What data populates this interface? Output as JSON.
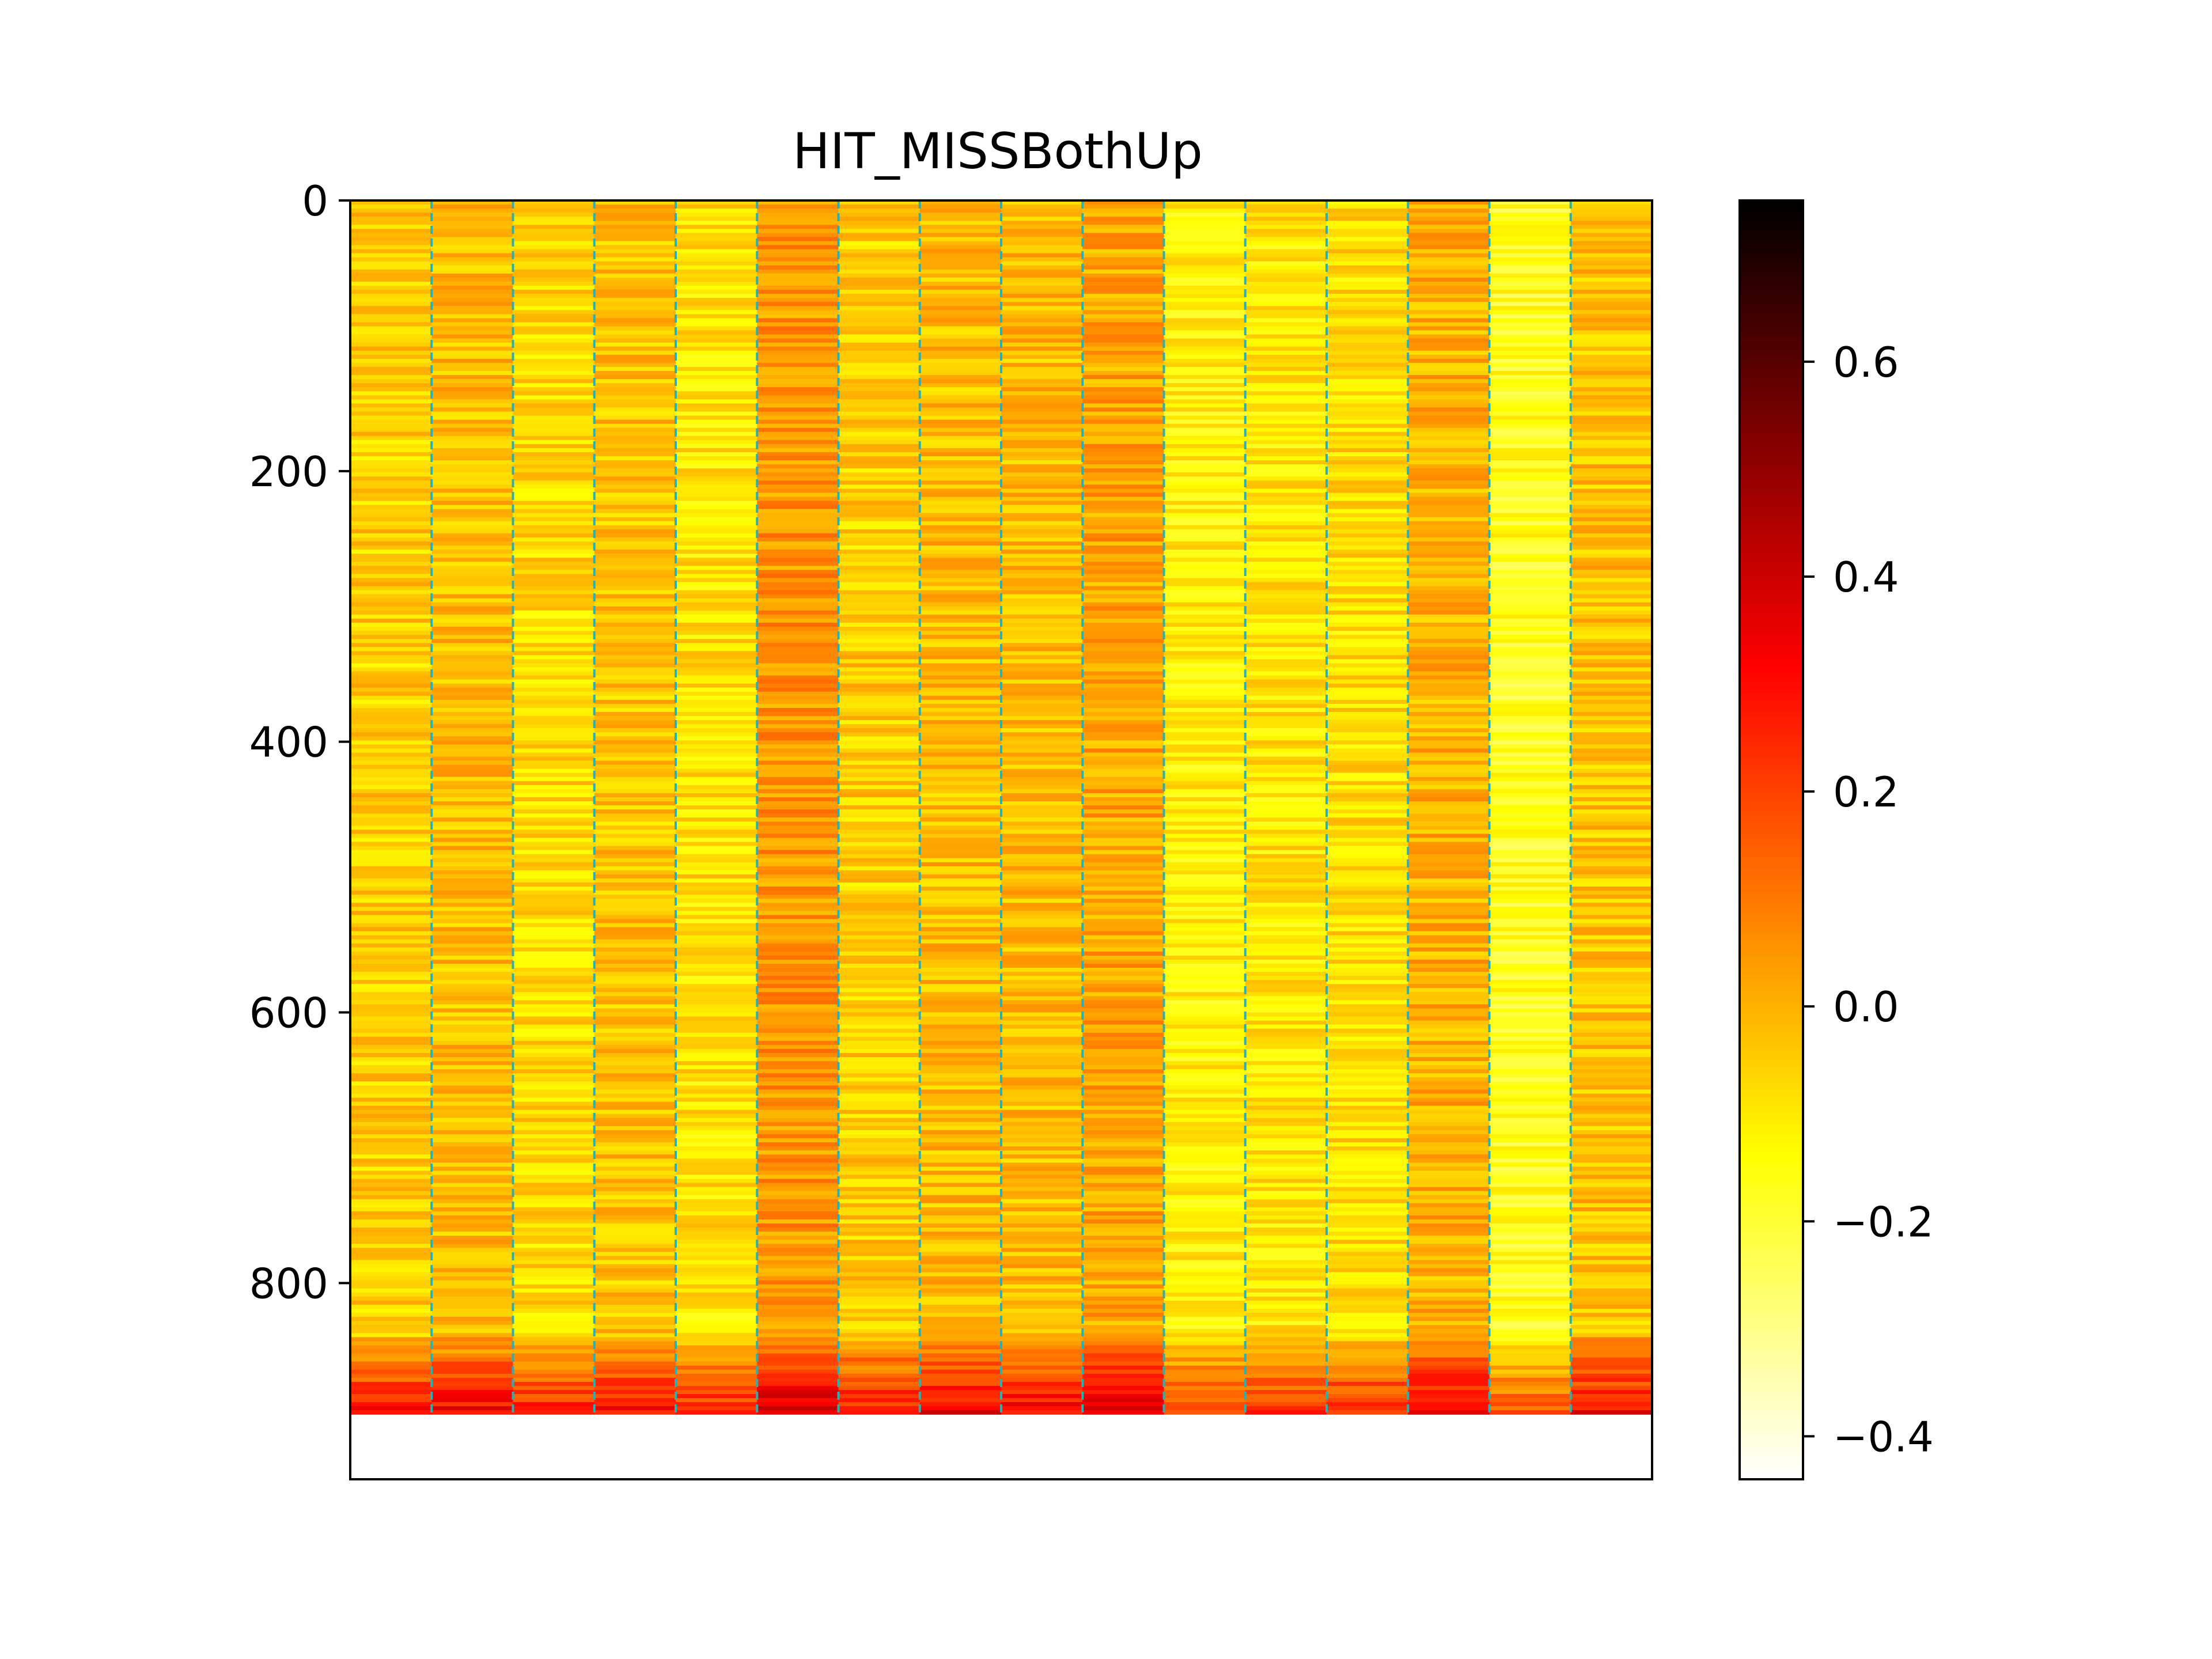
{
  "chart_data": {
    "type": "heatmap",
    "title": "HIT_MISSBothUp",
    "xlabel": "",
    "ylabel": "",
    "colormap": "hot_r",
    "y_axis": {
      "inverted": true,
      "ylim": [
        0,
        945
      ],
      "ticks": [
        0,
        200,
        400,
        600,
        800
      ],
      "tick_labels": [
        "0",
        "200",
        "400",
        "600",
        "800"
      ]
    },
    "x_axis": {
      "xlim": [
        0,
        16
      ],
      "ticks": [],
      "tick_labels": []
    },
    "rows_with_data": 897,
    "num_columns": 16,
    "column_boundaries": [
      1,
      2,
      3,
      4,
      5,
      6,
      7,
      8,
      9,
      10,
      11,
      12,
      13,
      14,
      15
    ],
    "divider_color": "#2ab0b0",
    "column_means": [
      -0.05,
      -0.02,
      -0.07,
      -0.03,
      -0.09,
      0.05,
      -0.05,
      -0.02,
      -0.02,
      0.02,
      -0.12,
      -0.1,
      -0.08,
      0.0,
      -0.17,
      -0.03
    ],
    "bottom_band": {
      "from_row": 840,
      "to_row": 897,
      "trend": "values increase toward 0.3-0.5"
    },
    "colorbar": {
      "vmin": -0.44,
      "vmax": 0.75,
      "ticks": [
        -0.4,
        -0.2,
        0.0,
        0.2,
        0.4,
        0.6
      ],
      "tick_labels": [
        "−0.4",
        "−0.2",
        "0.0",
        "0.2",
        "0.4",
        "0.6"
      ]
    }
  }
}
